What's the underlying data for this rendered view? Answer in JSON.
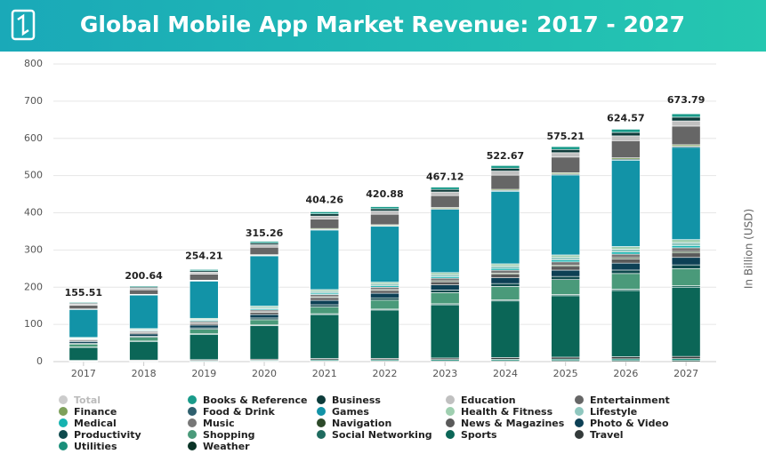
{
  "chart_data": {
    "type": "stacked_bar",
    "title": "Global Mobile App Market Revenue: 2017 - 2027",
    "y_label": "In Billion (USD)",
    "categories": [
      "2017",
      "2018",
      "2019",
      "2020",
      "2021",
      "2022",
      "2023",
      "2024",
      "2025",
      "2026",
      "2027"
    ],
    "ylim": [
      0,
      800
    ],
    "yticks": [
      0,
      100,
      200,
      300,
      400,
      500,
      600,
      700,
      800
    ],
    "grid": true,
    "total": {
      "name": "Total",
      "color": "#cccccc",
      "values": [
        155.51,
        200.64,
        254.21,
        315.26,
        404.26,
        420.88,
        467.12,
        522.67,
        575.21,
        624.57,
        673.79
      ]
    },
    "series": [
      {
        "name": "Books & Reference",
        "color": "#1a9b8a",
        "values": [
          2.1,
          2.7,
          3.4,
          4.2,
          5.4,
          5.6,
          6.2,
          7,
          7.7,
          8.4,
          9
        ]
      },
      {
        "name": "Business",
        "color": "#0d3b3a",
        "values": [
          2.3,
          3,
          3.8,
          4.7,
          6,
          6.2,
          6.9,
          7.8,
          8.5,
          9.3,
          10
        ]
      },
      {
        "name": "Education",
        "color": "#c0c0c0",
        "values": [
          3.2,
          4.2,
          5.3,
          6.6,
          8.4,
          8.7,
          9.7,
          10.9,
          11.9,
          13,
          14
        ]
      },
      {
        "name": "Entertainment",
        "color": "#666666",
        "values": [
          10,
          12,
          16,
          20,
          25,
          28,
          32,
          38,
          42,
          46,
          50
        ]
      },
      {
        "name": "Finance",
        "color": "#7da05a",
        "values": [
          0.9,
          1.2,
          1.5,
          1.9,
          2.4,
          2.5,
          2.8,
          3.1,
          3.4,
          3.7,
          4
        ]
      },
      {
        "name": "Food & Drink",
        "color": "#2e5f6e",
        "values": [
          0.7,
          0.9,
          1.1,
          1.4,
          1.8,
          1.9,
          2.1,
          2.3,
          2.6,
          2.8,
          3
        ]
      },
      {
        "name": "Games",
        "color": "#1293a7",
        "values": [
          75,
          90,
          100,
          135,
          160,
          150,
          170,
          195,
          215,
          232,
          248
        ]
      },
      {
        "name": "Health & Fitness",
        "color": "#9fcfb0",
        "values": [
          1.8,
          2.4,
          3,
          3.8,
          4.8,
          5,
          5.5,
          6.2,
          6.8,
          7.4,
          8
        ]
      },
      {
        "name": "Lifestyle",
        "color": "#8fc7bf",
        "values": [
          1.8,
          2.4,
          3,
          3.8,
          4.8,
          5,
          5.5,
          6.2,
          6.8,
          7.4,
          8
        ]
      },
      {
        "name": "Medical",
        "color": "#16b3b0",
        "values": [
          1.4,
          1.8,
          2.3,
          2.8,
          3.6,
          3.7,
          4.1,
          4.7,
          5.1,
          5.6,
          6
        ]
      },
      {
        "name": "Music",
        "color": "#777777",
        "values": [
          2.3,
          3,
          3.8,
          4.7,
          6,
          6.2,
          6.9,
          7.8,
          8.5,
          9.3,
          10
        ]
      },
      {
        "name": "Navigation",
        "color": "#2d4a2a",
        "values": [
          0.9,
          1.2,
          1.5,
          1.9,
          2.4,
          2.5,
          2.8,
          3.1,
          3.4,
          3.7,
          4
        ]
      },
      {
        "name": "News & Magazines",
        "color": "#5a5a5a",
        "values": [
          2.8,
          3.6,
          4.6,
          5.6,
          7.2,
          7.4,
          8.3,
          9.4,
          10.2,
          11.2,
          12
        ]
      },
      {
        "name": "Photo & Video",
        "color": "#0d4055",
        "values": [
          4.6,
          6,
          7.6,
          9.4,
          12,
          12.4,
          13.8,
          15.6,
          17,
          18.6,
          20
        ]
      },
      {
        "name": "Productivity",
        "color": "#0e4a4d",
        "values": [
          2.3,
          3,
          3.8,
          4.7,
          6,
          6.2,
          6.9,
          7.8,
          8.5,
          9.3,
          10
        ]
      },
      {
        "name": "Shopping",
        "color": "#4a9a7a",
        "values": [
          8,
          10,
          12,
          14,
          18,
          24,
          30,
          36,
          40,
          42,
          46
        ]
      },
      {
        "name": "Social Networking",
        "color": "#1f6b5f",
        "values": [
          0.9,
          1.2,
          1.5,
          1.9,
          2.4,
          2.5,
          2.8,
          3.1,
          3.4,
          3.7,
          4
        ]
      },
      {
        "name": "Sports",
        "color": "#0b6657",
        "values": [
          35,
          50,
          68,
          90,
          118,
          130,
          143,
          152,
          165,
          178,
          186
        ]
      },
      {
        "name": "Travel",
        "color": "#333a3a",
        "values": [
          1.4,
          1.8,
          2.3,
          2.8,
          3.6,
          3.7,
          4.1,
          4.7,
          5.1,
          5.6,
          6
        ]
      },
      {
        "name": "Utilities",
        "color": "#1a8f7a",
        "values": [
          1.2,
          1.5,
          1.9,
          2.4,
          3,
          3.1,
          3.5,
          3.9,
          4.3,
          4.7,
          5
        ]
      },
      {
        "name": "Weather",
        "color": "#0a3326",
        "values": [
          0.7,
          0.9,
          1.1,
          1.4,
          1.8,
          1.9,
          2.1,
          2.3,
          2.6,
          2.8,
          3
        ]
      }
    ]
  }
}
